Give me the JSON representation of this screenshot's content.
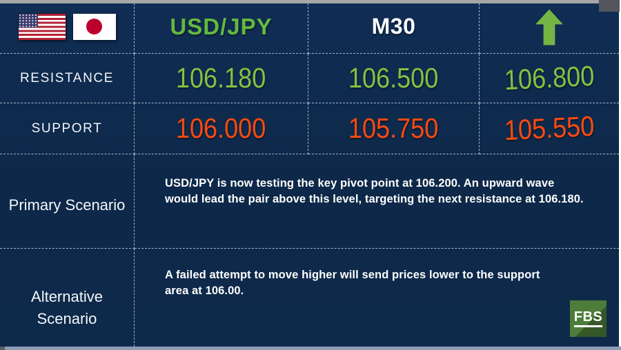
{
  "header": {
    "pair": "USD/JPY",
    "timeframe": "M30"
  },
  "icons": {
    "flags": [
      "us-flag",
      "japan-flag"
    ],
    "trend": "up-arrow",
    "logo": "fbs-logo"
  },
  "levels": {
    "resistance": {
      "label": "RESISTANCE",
      "values": [
        "106.180",
        "106.500",
        "106.800"
      ]
    },
    "support": {
      "label": "SUPPORT",
      "values": [
        "106.000",
        "105.750",
        "105.550"
      ]
    }
  },
  "scenarios": {
    "primary": {
      "label": "Primary Scenario",
      "text": "USD/JPY is now testing the key pivot point at 106.200. An upward wave\nwould lead the pair above this level, targeting the next resistance at 106.180."
    },
    "alternative": {
      "label": "Alternative\nScenario",
      "text": "A failed attempt to move higher will send prices lower to the support\narea at 106.00."
    }
  },
  "logo": {
    "text": "FBS"
  },
  "colors": {
    "resistance": "#82c341",
    "support": "#fc4a10",
    "accent_green": "#64b93e",
    "arrow_green": "#74b445",
    "logo_green": "#4d7d39",
    "background": "#0e2a4b"
  }
}
